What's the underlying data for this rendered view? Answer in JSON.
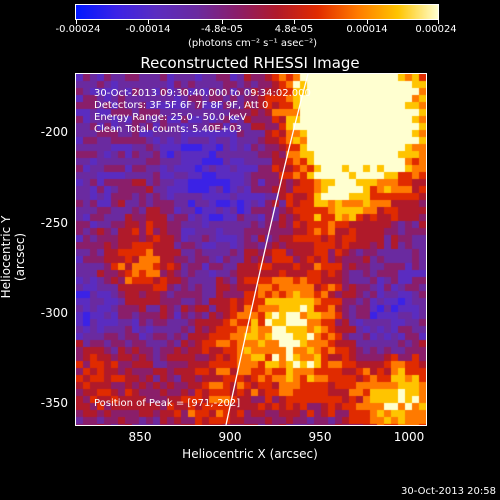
{
  "colorbar": {
    "ticks": [
      "-0.00024",
      "-0.00014",
      "-4.8e-05",
      "4.8e-05",
      "0.00014",
      "0.00024"
    ],
    "units": "(photons cm⁻² s⁻¹ asec⁻²)",
    "colors": [
      "#0018ff",
      "#3b22e6",
      "#5a2cc0",
      "#6a2aa0",
      "#8a1e6a",
      "#b01a2a",
      "#e02b00",
      "#ff7a00",
      "#ffc400",
      "#ffffd0"
    ]
  },
  "title": "Reconstructed RHESSI Image",
  "info": {
    "time_range": "30-Oct-2013 09:30:40.000 to 09:34:02.000",
    "detectors": "Detectors: 3F 5F 6F 7F 8F 9F, Att 0",
    "energy_range": "Energy Range: 25.0 - 50.0 keV",
    "clean": "Clean     Total counts: 5.40E+03",
    "peak": "Position of Peak = [971,-202]"
  },
  "axes": {
    "x_label": "Heliocentric X (arcsec)",
    "y_label": "Heliocentric Y (arcsec)",
    "x_ticks": [
      "850",
      "900",
      "950",
      "1000"
    ],
    "y_ticks": [
      "-200",
      "-250",
      "-300",
      "-350"
    ]
  },
  "timestamp": "30-Oct-2013 20:58"
}
